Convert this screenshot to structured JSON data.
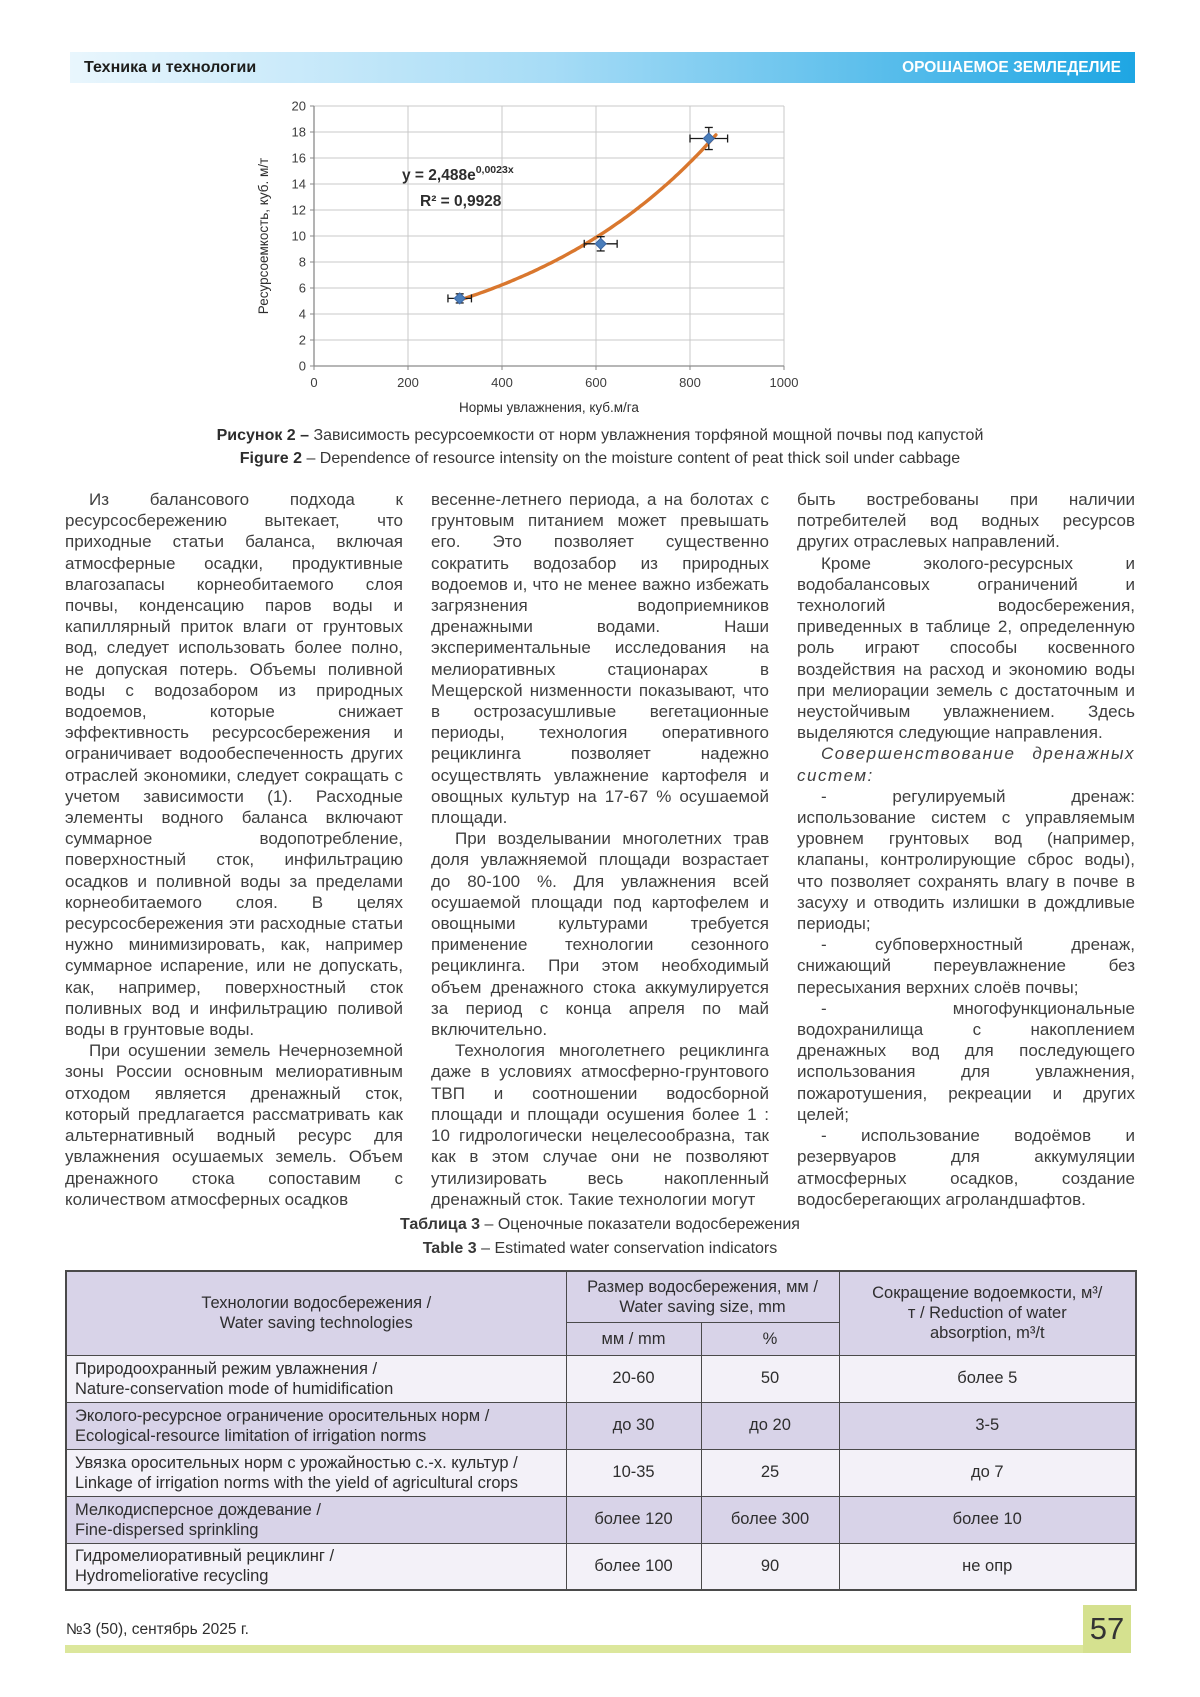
{
  "header": {
    "left": "Техника и технологии",
    "right": "ОРОШАЕМОЕ ЗЕМЛЕДЕЛИЕ"
  },
  "chart_data": {
    "type": "scatter",
    "title": "",
    "xlabel": "Нормы увлажнения, куб.м/га",
    "ylabel": "Ресурсоемкость, куб. м/т",
    "xlim": [
      0,
      1000
    ],
    "ylim": [
      0,
      20
    ],
    "xticks": [
      0,
      200,
      400,
      600,
      800,
      1000
    ],
    "yticks": [
      0,
      2,
      4,
      6,
      8,
      10,
      12,
      14,
      16,
      18,
      20
    ],
    "grid": true,
    "legend": false,
    "points": [
      {
        "x": 310,
        "y": 5.2,
        "xerr": 25,
        "yerr": 0.35
      },
      {
        "x": 610,
        "y": 9.4,
        "xerr": 35,
        "yerr": 0.55
      },
      {
        "x": 840,
        "y": 17.5,
        "xerr": 40,
        "yerr": 0.85
      }
    ],
    "trendline": {
      "type": "exponential",
      "a": 2.488,
      "b": 0.0023,
      "x_start": 310,
      "x_end": 855,
      "color": "#d9772e"
    },
    "point_color": "#4a7ebb",
    "equation_base": "y = 2,488e",
    "equation_exp": "0,0023x",
    "r_squared": "R² = 0,9928"
  },
  "figure": {
    "caption_ru_bold": "Рисунок 2 –",
    "caption_ru_rest": " Зависимость ресурсоемкости от норм увлажнения торфяной мощной почвы под капустой",
    "caption_en_bold": "Figure 2",
    "caption_en_rest": " – Dependence of resource intensity on the moisture content of peat thick soil under cabbage"
  },
  "body": {
    "columns": [
      {
        "paragraphs": [
          {
            "text": "Из балансового подхода к ресурсосбережению вытекает, что приходные статьи баланса, включая атмосферные осадки, продуктивные влагозапасы корнеобитаемого слоя почвы, конденсацию паров воды и капиллярный приток влаги от грунтовых вод, следует использовать более полно, не допуская потерь. Объемы поливной воды с водозабором из природных водоемов, которые снижает эффективность ресурсосбережения и ограничивает водообеспеченность других отраслей экономики, следует сокращать с учетом зависимости (1). Расходные элементы водного баланса включают суммарное водопотребление, поверхностный сток, инфильтрацию осадков и поливной воды за пределами корнеобитаемого слоя. В целях ресурсосбережения эти расходные статьи нужно минимизировать, как, например суммарное испарение, или не допускать, как, например, поверхностный сток поливных вод и инфильтрацию поливой воды в грунтовые воды."
          },
          {
            "text": "При осушении земель Нечерноземной зоны России основным мелиоративным отходом является дренажный сток, который предлагается рассматривать как альтернативный водный ресурс для увлажнения осушаемых земель. Объем дренажного стока сопоставим с количеством атмосферных осадков"
          }
        ]
      },
      {
        "paragraphs": [
          {
            "text": "весенне-летнего периода, а на болотах с грунтовым питанием может превышать его. Это позволяет существенно сократить водозабор из природных водоемов и, что не менее важно избежать загрязнения водоприемников дренажными водами. Наши экспериментальные исследования на мелиоративных стационарах в Мещерской низменности показывают, что в острозасушливые вегетационные периоды, технология оперативного рециклинга позволяет надежно осуществлять увлажнение картофеля и овощных культур на 17-67 % осушаемой площади."
          },
          {
            "text": "При возделывании многолетних трав доля увлажняемой площади возрастает до 80-100 %. Для увлажнения всей осушаемой площади под картофелем и овощными культурами требуется применение технологии сезонного рециклинга. При этом необходимый объем дренажного стока аккумулируется за период с конца апреля по май включительно."
          },
          {
            "text": "Технология многолетнего рециклинга даже в условиях атмосферно-грунтового ТВП и соотношении водосборной площади и площади осушения более 1 : 10 гидрологически нецелесообразна, так как в этом случае они не позволяют утилизировать весь накопленный дренажный сток. Такие технологии могут"
          }
        ]
      },
      {
        "paragraphs": [
          {
            "text": "быть востребованы при наличии потребителей вод водных ресурсов других отраслевых направлений."
          },
          {
            "text": "Кроме эколого-ресурсных и водобалансовых ограничений и технологий водосбережения, приведенных в таблице 2, определенную роль играют способы косвенного воздействия на расход и экономию воды при мелиорации земель с достаточным и неустойчивым увлажнением. Здесь выделяются следующие направления."
          },
          {
            "text": "Совершенствование дренажных систем:"
          },
          {
            "text": "- регулируемый дренаж: использование систем с управляемым уровнем грунтовых вод (например, клапаны, контролирующие сброс воды), что позволяет сохранять влагу в почве в засуху и отводить излишки в дождливые периоды;"
          },
          {
            "text": "- субповерхностный дренаж, снижающий переувлажнение без пересыхания верхних слоёв почвы;"
          },
          {
            "text": "- многофункциональные водохранилища с накоплением дренажных вод для последующего использования для увлажнения, пожаротушения, рекреации и других целей;"
          },
          {
            "text": "- использование водоёмов и резервуаров для аккумуляции атмосферных осадков, создание водосберегающих агроландшафтов."
          }
        ]
      }
    ]
  },
  "table": {
    "caption_ru_bold": "Таблица 3",
    "caption_ru_rest": " – Оценочные показатели водосбережения",
    "caption_en_bold": "Table 3",
    "caption_en_rest": " – Estimated water conservation indicators",
    "headers": {
      "tech_ru": "Технологии водосбережения /",
      "tech_en": "Water saving technologies",
      "size_ru": "Размер водосбережения, мм /",
      "size_en": "Water saving size, mm",
      "mm": "мм / mm",
      "percent": "%",
      "reduction_ru": "Сокращение водоемкости, м³/т /",
      "reduction_en": "Reduction of water absorption, m³/t"
    },
    "rows": [
      {
        "ru": "Природоохранный режим увлажнения /",
        "en": "Nature-conservation mode of humidification",
        "mm": "20-60",
        "percent": "50",
        "reduction": "более 5"
      },
      {
        "ru": "Эколого-ресурсное ограничение оросительных норм /",
        "en": "Ecological-resource limitation of irrigation norms",
        "mm": "до 30",
        "percent": "до 20",
        "reduction": "3-5"
      },
      {
        "ru": "Увязка оросительных норм с урожайностью с.-х. культур /",
        "en": "Linkage of irrigation norms with the yield of agricultural crops",
        "mm": "10-35",
        "percent": "25",
        "reduction": "до 7"
      },
      {
        "ru": "Мелкодисперсное дождевание /",
        "en": "Fine-dispersed sprinkling",
        "mm": "более 120",
        "percent": "более 300",
        "reduction": "более 10"
      },
      {
        "ru": "Гидромелиоративный рециклинг /",
        "en": "Hydromeliorative recycling",
        "mm": "более 100",
        "percent": "90",
        "reduction": "не опр"
      }
    ]
  },
  "footer": {
    "issue": "№3 (50), сентябрь 2025 г.",
    "page": "57"
  }
}
